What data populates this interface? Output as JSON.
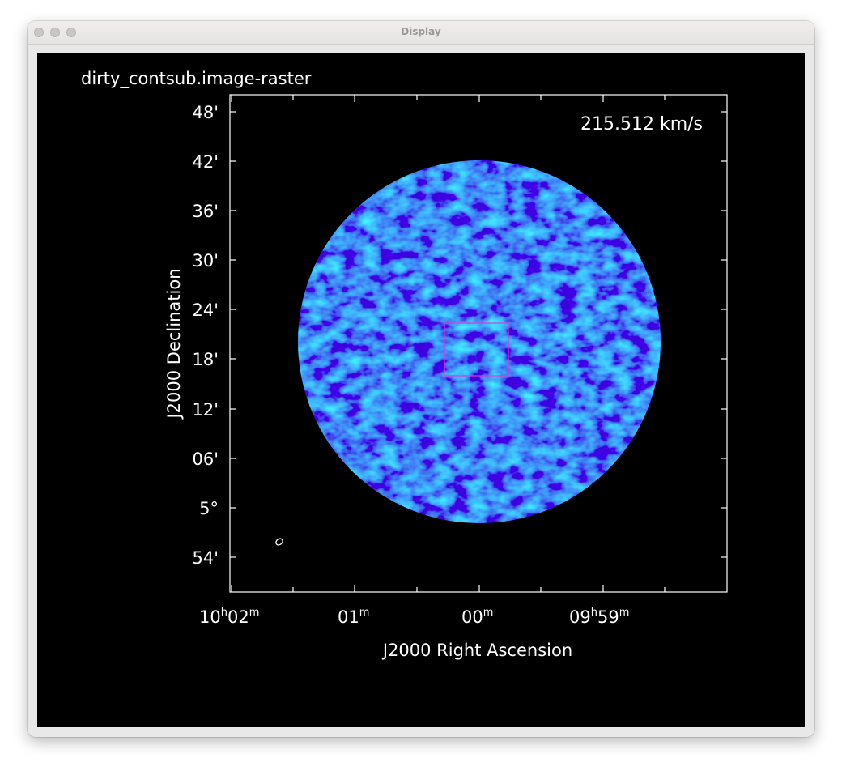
{
  "window": {
    "title": "Display"
  },
  "image": {
    "name": "dirty_contsub.image-raster",
    "velocity_label": "215.512 km/s",
    "y_axis_label": "J2000 Declination",
    "x_axis_label": "J2000 Right Ascension",
    "y_ticks": [
      "48'",
      "42'",
      "36'",
      "30'",
      "24'",
      "18'",
      "12'",
      "06'",
      "5°",
      "54'"
    ],
    "x_ticks": [
      {
        "main": "10",
        "sup1": "h",
        "rest": "02",
        "sup2": "m"
      },
      {
        "main": "01",
        "sup2": "m"
      },
      {
        "main": "00",
        "sup2": "m"
      },
      {
        "main": "09",
        "sup1": "h",
        "rest": "59",
        "sup2": "m"
      }
    ],
    "colors": {
      "background": "#000000",
      "raster_base": "#0a24ee",
      "raster_highlight": "#2a7cff",
      "region_box": "#d63ad6",
      "axes": "#ffffff"
    }
  }
}
